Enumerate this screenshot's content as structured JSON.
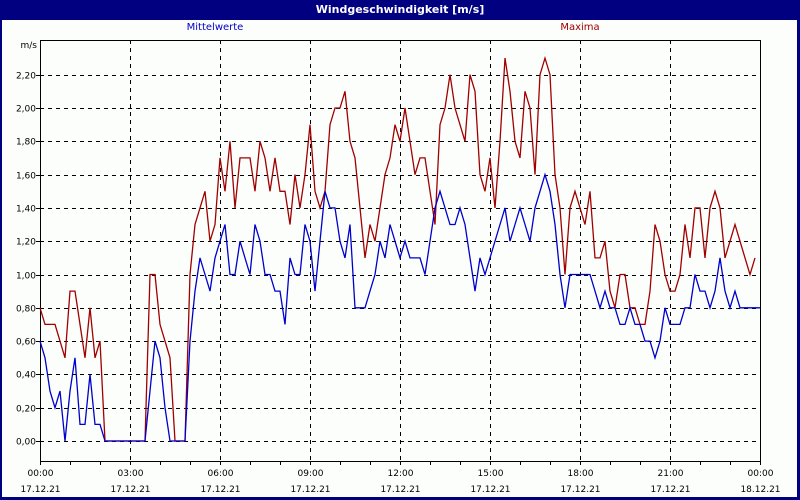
{
  "title": "Windgeschwindigkeit [m/s]",
  "legend": [
    {
      "name": "Mittelwerte",
      "color": "#0000cc"
    },
    {
      "name": "Maxima",
      "color": "#a00000"
    }
  ],
  "colors": {
    "frame": "#000080",
    "background": "#fcfefc",
    "grid": "#000000"
  },
  "chart_data": {
    "type": "line",
    "title": "Windgeschwindigkeit [m/s]",
    "xlabel": "",
    "ylabel": "m/s",
    "ylim": [
      -0.12,
      2.4
    ],
    "xlim_hours": [
      0,
      24
    ],
    "grid": true,
    "legend_position": "top",
    "y_ticks": [
      "0,00",
      "0,20",
      "0,40",
      "0,60",
      "0,80",
      "1,00",
      "1,20",
      "1,40",
      "1,60",
      "1,80",
      "2,00",
      "2,20"
    ],
    "x_ticks": [
      {
        "time": "00:00",
        "date": "17.12.21"
      },
      {
        "time": "03:00",
        "date": "17.12.21"
      },
      {
        "time": "06:00",
        "date": "17.12.21"
      },
      {
        "time": "09:00",
        "date": "17.12.21"
      },
      {
        "time": "12:00",
        "date": "17.12.21"
      },
      {
        "time": "15:00",
        "date": "17.12.21"
      },
      {
        "time": "18:00",
        "date": "17.12.21"
      },
      {
        "time": "21:00",
        "date": "17.12.21"
      },
      {
        "time": "00:00",
        "date": "18.12.21"
      }
    ],
    "sample_interval_minutes": 10,
    "series": [
      {
        "name": "Mittelwerte",
        "color": "#0000cc",
        "values": [
          0.6,
          0.5,
          0.3,
          0.2,
          0.3,
          0.0,
          0.3,
          0.5,
          0.1,
          0.1,
          0.4,
          0.1,
          0.1,
          0.0,
          0.0,
          0.0,
          0.0,
          0.0,
          0.0,
          0.0,
          0.0,
          0.0,
          0.3,
          0.6,
          0.5,
          0.2,
          0.0,
          0.0,
          0.0,
          0.0,
          0.6,
          0.9,
          1.1,
          1.0,
          0.9,
          1.1,
          1.2,
          1.3,
          1.0,
          1.0,
          1.2,
          1.1,
          1.0,
          1.3,
          1.2,
          1.0,
          1.0,
          0.9,
          0.9,
          0.7,
          1.1,
          1.0,
          1.0,
          1.3,
          1.2,
          0.9,
          1.2,
          1.5,
          1.4,
          1.4,
          1.2,
          1.1,
          1.3,
          0.8,
          0.8,
          0.8,
          0.9,
          1.0,
          1.2,
          1.1,
          1.3,
          1.2,
          1.1,
          1.2,
          1.1,
          1.1,
          1.1,
          1.0,
          1.2,
          1.4,
          1.5,
          1.4,
          1.3,
          1.3,
          1.4,
          1.3,
          1.1,
          0.9,
          1.1,
          1.0,
          1.1,
          1.2,
          1.3,
          1.4,
          1.2,
          1.3,
          1.4,
          1.3,
          1.2,
          1.4,
          1.5,
          1.6,
          1.5,
          1.3,
          1.0,
          0.8,
          1.0,
          1.0,
          1.0,
          1.0,
          1.0,
          0.9,
          0.8,
          0.9,
          0.8,
          0.8,
          0.7,
          0.7,
          0.8,
          0.7,
          0.7,
          0.6,
          0.6,
          0.5,
          0.6,
          0.8,
          0.7,
          0.7,
          0.7,
          0.8,
          0.8,
          1.0,
          0.9,
          0.9,
          0.8,
          0.9,
          1.1,
          0.9,
          0.8,
          0.9,
          0.8,
          0.8,
          0.8,
          0.8,
          0.8
        ]
      },
      {
        "name": "Maxima",
        "color": "#a00000",
        "values": [
          0.8,
          0.7,
          0.7,
          0.7,
          0.6,
          0.5,
          0.9,
          0.9,
          0.7,
          0.5,
          0.8,
          0.5,
          0.6,
          0.0,
          0.0,
          0.0,
          0.0,
          0.0,
          0.0,
          0.0,
          0.0,
          0.0,
          1.0,
          1.0,
          0.7,
          0.6,
          0.5,
          0.0,
          0.0,
          0.0,
          1.0,
          1.3,
          1.4,
          1.5,
          1.2,
          1.3,
          1.7,
          1.5,
          1.8,
          1.4,
          1.7,
          1.7,
          1.7,
          1.5,
          1.8,
          1.7,
          1.5,
          1.7,
          1.5,
          1.5,
          1.3,
          1.6,
          1.4,
          1.6,
          1.9,
          1.5,
          1.4,
          1.5,
          1.9,
          2.0,
          2.0,
          2.1,
          1.8,
          1.7,
          1.4,
          1.1,
          1.3,
          1.2,
          1.4,
          1.6,
          1.7,
          1.9,
          1.8,
          2.0,
          1.8,
          1.6,
          1.7,
          1.7,
          1.5,
          1.3,
          1.9,
          2.0,
          2.2,
          2.0,
          1.9,
          1.8,
          2.2,
          2.1,
          1.6,
          1.5,
          1.7,
          1.4,
          1.8,
          2.3,
          2.1,
          1.8,
          1.7,
          2.1,
          2.0,
          1.6,
          2.2,
          2.3,
          2.2,
          1.6,
          1.4,
          1.0,
          1.4,
          1.5,
          1.4,
          1.3,
          1.5,
          1.1,
          1.1,
          1.2,
          0.9,
          0.8,
          1.0,
          1.0,
          0.8,
          0.8,
          0.7,
          0.7,
          0.9,
          1.3,
          1.2,
          1.0,
          0.9,
          0.9,
          1.0,
          1.3,
          1.1,
          1.4,
          1.4,
          1.1,
          1.4,
          1.5,
          1.4,
          1.1,
          1.2,
          1.3,
          1.2,
          1.1,
          1.0,
          1.1
        ]
      }
    ]
  }
}
